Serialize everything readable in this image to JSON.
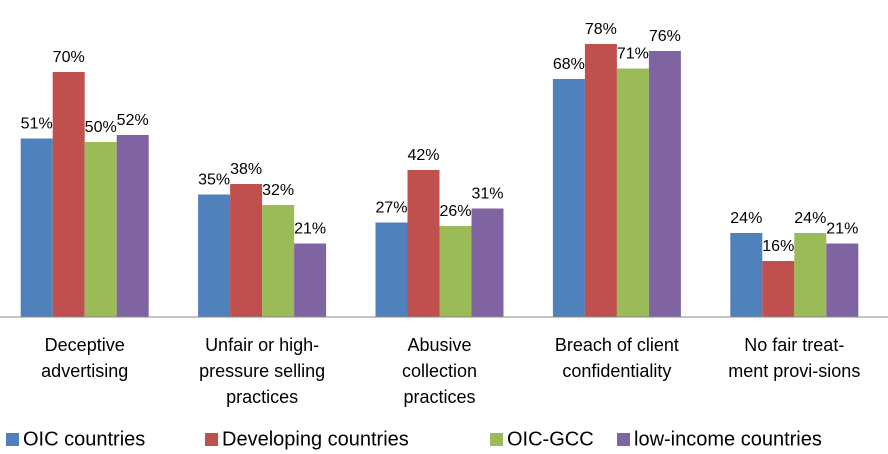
{
  "chart_data": {
    "type": "bar",
    "categories": [
      [
        "Deceptive",
        "advertising"
      ],
      [
        "Unfair or high-",
        "pressure selling",
        "practices"
      ],
      [
        "Abusive",
        "collection",
        "practices"
      ],
      [
        "Breach of client",
        "confidentiality"
      ],
      [
        "No fair treat-",
        "ment provi-sions"
      ]
    ],
    "series": [
      {
        "name": "OIC countries",
        "color": "#4f81bd",
        "values": [
          51,
          35,
          27,
          68,
          24
        ],
        "value_labels": [
          "51%",
          "35%",
          "27%",
          "68%",
          "24%"
        ]
      },
      {
        "name": "Developing countries",
        "color": "#c0504d",
        "values": [
          70,
          38,
          42,
          78,
          16
        ],
        "value_labels": [
          "70%",
          "38%",
          "42%",
          "78%",
          "16%"
        ]
      },
      {
        "name": "OIC-GCC",
        "color": "#9bbb59",
        "values": [
          50,
          32,
          26,
          71,
          24
        ],
        "value_labels": [
          "50%",
          "32%",
          "26%",
          "71%",
          "24%"
        ]
      },
      {
        "name": "low-income countries",
        "color": "#8064a2",
        "values": [
          52,
          21,
          31,
          76,
          21
        ],
        "value_labels": [
          "52%",
          "21%",
          "31%",
          "76%",
          "21%"
        ]
      }
    ],
    "ylim": [
      0,
      80
    ],
    "legend": "bottom"
  }
}
